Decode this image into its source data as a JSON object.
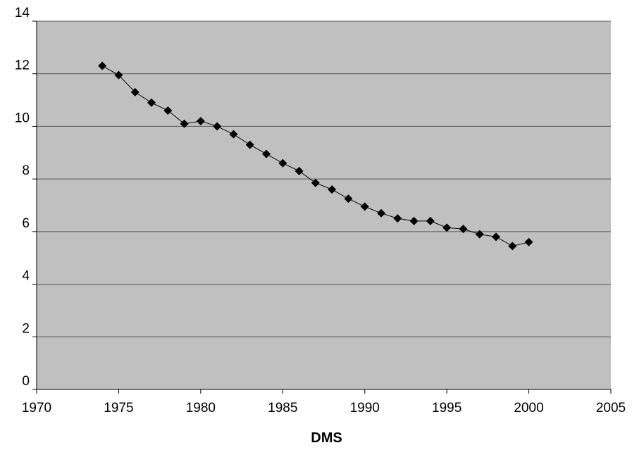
{
  "chart_data": {
    "type": "line",
    "title": "",
    "xlabel": "DMS",
    "ylabel": "",
    "xlim": [
      1970,
      2005
    ],
    "ylim": [
      0,
      14
    ],
    "x_ticks": [
      1970,
      1975,
      1980,
      1985,
      1990,
      1995,
      2000,
      2005
    ],
    "y_ticks": [
      0,
      2,
      4,
      6,
      8,
      10,
      12,
      14
    ],
    "grid": true,
    "legend": "none",
    "marker": "diamond",
    "colors": {
      "plot_background": "#c0c0c0",
      "gridline": "#000000",
      "series": "#000000"
    },
    "series": [
      {
        "x": [
          1974,
          1975,
          1976,
          1977,
          1978,
          1979,
          1980,
          1981,
          1982,
          1983,
          1984,
          1985,
          1986,
          1987,
          1988,
          1989,
          1990,
          1991,
          1992,
          1993,
          1994,
          1995,
          1996,
          1997,
          1998,
          1999,
          2000
        ],
        "y": [
          12.3,
          11.95,
          11.3,
          10.9,
          10.6,
          10.1,
          10.2,
          10.0,
          9.7,
          9.3,
          8.95,
          8.6,
          8.3,
          7.85,
          7.6,
          7.25,
          6.95,
          6.7,
          6.5,
          6.4,
          6.4,
          6.15,
          6.1,
          5.9,
          5.8,
          5.45,
          5.6
        ]
      }
    ]
  }
}
